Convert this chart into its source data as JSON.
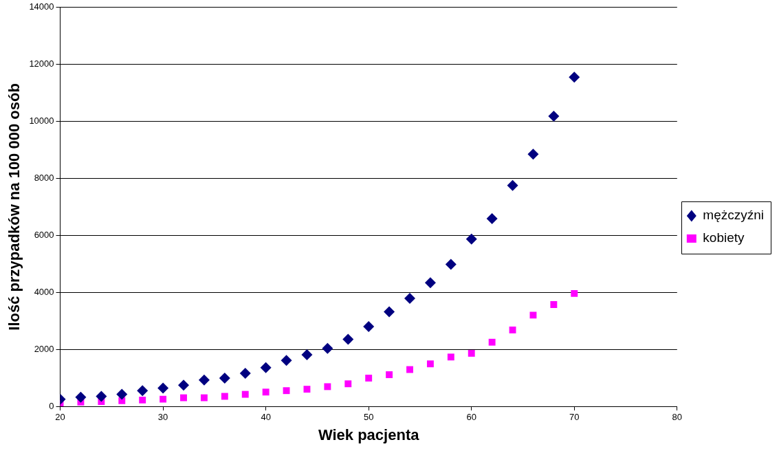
{
  "chart_data": {
    "type": "scatter",
    "xlabel": "Wiek pacjenta",
    "ylabel": "Ilość przypadków na 100 000 osób",
    "x": [
      20,
      22,
      24,
      26,
      28,
      30,
      32,
      34,
      36,
      38,
      40,
      42,
      44,
      46,
      48,
      50,
      52,
      54,
      56,
      58,
      60,
      62,
      64,
      66,
      68,
      70
    ],
    "series": [
      {
        "name": "mężczyźni",
        "color": "#000080",
        "marker": "diamond",
        "values": [
          250,
          320,
          350,
          420,
          550,
          640,
          740,
          920,
          990,
          1160,
          1360,
          1610,
          1810,
          2030,
          2350,
          2800,
          3320,
          3790,
          4340,
          4980,
          5870,
          6590,
          7750,
          8850,
          10180,
          11550
        ]
      },
      {
        "name": "kobiety",
        "color": "#ff00ff",
        "marker": "square",
        "values": [
          100,
          150,
          170,
          200,
          220,
          250,
          300,
          300,
          350,
          420,
          500,
          550,
          600,
          690,
          790,
          990,
          1110,
          1290,
          1490,
          1730,
          1860,
          2250,
          2680,
          3200,
          3570,
          3960
        ]
      }
    ],
    "xlim": [
      20,
      80
    ],
    "xticks": [
      20,
      30,
      40,
      50,
      60,
      70,
      80
    ],
    "ylim": [
      0,
      14000
    ],
    "yticks": [
      0,
      2000,
      4000,
      6000,
      8000,
      10000,
      12000,
      14000
    ],
    "grid": "y",
    "legend": "right"
  }
}
